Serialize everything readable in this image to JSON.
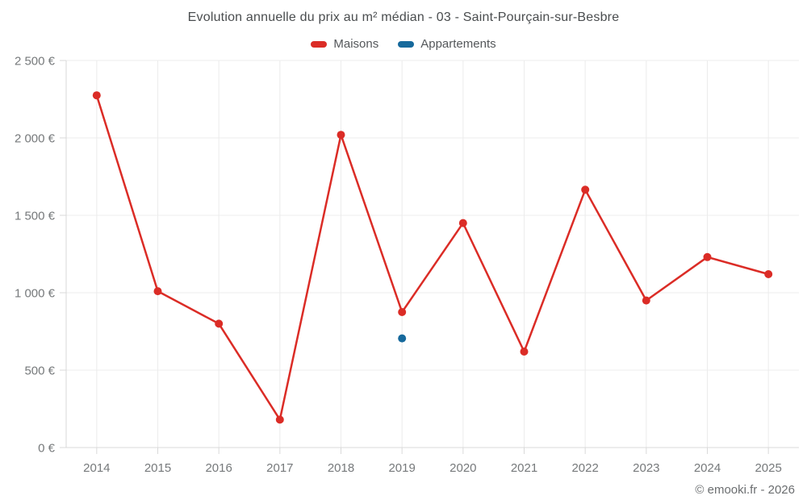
{
  "title": "Evolution annuelle du prix au m² médian - 03 - Saint-Pourçain-sur-Besbre",
  "legend": [
    {
      "label": "Maisons",
      "color": "#db2c26"
    },
    {
      "label": "Appartements",
      "color": "#16699c"
    }
  ],
  "footer": "© emooki.fr - 2026",
  "colors": {
    "maisons": "#db2c26",
    "appartements": "#16699c",
    "gridline": "#ececec",
    "axis": "#d9d9d9",
    "axis_text": "#76797b"
  },
  "chart_data": {
    "type": "line",
    "title": "Evolution annuelle du prix au m² médian - 03 - Saint-Pourçain-sur-Besbre",
    "categories": [
      "2014",
      "2015",
      "2016",
      "2017",
      "2018",
      "2019",
      "2020",
      "2021",
      "2022",
      "2023",
      "2024",
      "2025"
    ],
    "series": [
      {
        "name": "Maisons",
        "color": "#db2c26",
        "values": [
          2275,
          1010,
          800,
          180,
          2020,
          875,
          1450,
          620,
          1665,
          950,
          1230,
          1120
        ]
      },
      {
        "name": "Appartements",
        "color": "#16699c",
        "values": [
          null,
          null,
          null,
          null,
          null,
          705,
          null,
          null,
          null,
          null,
          null,
          null
        ]
      }
    ],
    "xlabel": "",
    "ylabel": "",
    "ylim": [
      0,
      2500
    ],
    "yticks": [
      0,
      500,
      1000,
      1500,
      2000,
      2500
    ],
    "ytick_labels": [
      "0 €",
      "500 €",
      "1 000 €",
      "1 500 €",
      "2 000 €",
      "2 500 €"
    ],
    "grid": true,
    "legend_position": "top"
  }
}
